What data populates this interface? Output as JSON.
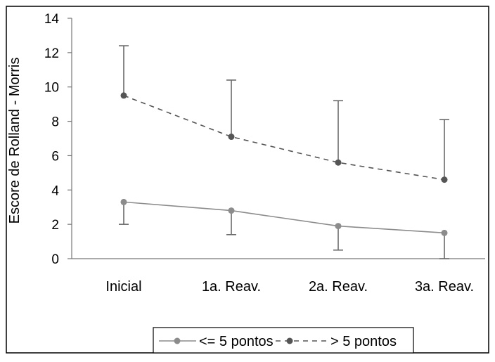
{
  "chart_data": {
    "type": "line",
    "title": "",
    "xlabel": "",
    "ylabel": "Escore de Rolland - Morris",
    "categories": [
      "Inicial",
      "1a. Reav.",
      "2a. Reav.",
      "3a. Reav."
    ],
    "ylim": [
      0,
      14
    ],
    "yticks": [
      0,
      2,
      4,
      6,
      8,
      10,
      12,
      14
    ],
    "grid": false,
    "legend_position": "bottom",
    "series": [
      {
        "name": "<= 5 pontos",
        "values": [
          3.3,
          2.8,
          1.9,
          1.5
        ],
        "error": [
          1.3,
          1.4,
          1.4,
          1.5
        ],
        "error_direction": "down",
        "line_style": "solid",
        "color": "#8c8c8c"
      },
      {
        "name": "> 5 pontos",
        "values": [
          9.5,
          7.1,
          5.6,
          4.6
        ],
        "error": [
          2.9,
          3.3,
          3.6,
          3.5
        ],
        "error_direction": "up",
        "line_style": "dashed",
        "color": "#555555"
      }
    ]
  }
}
